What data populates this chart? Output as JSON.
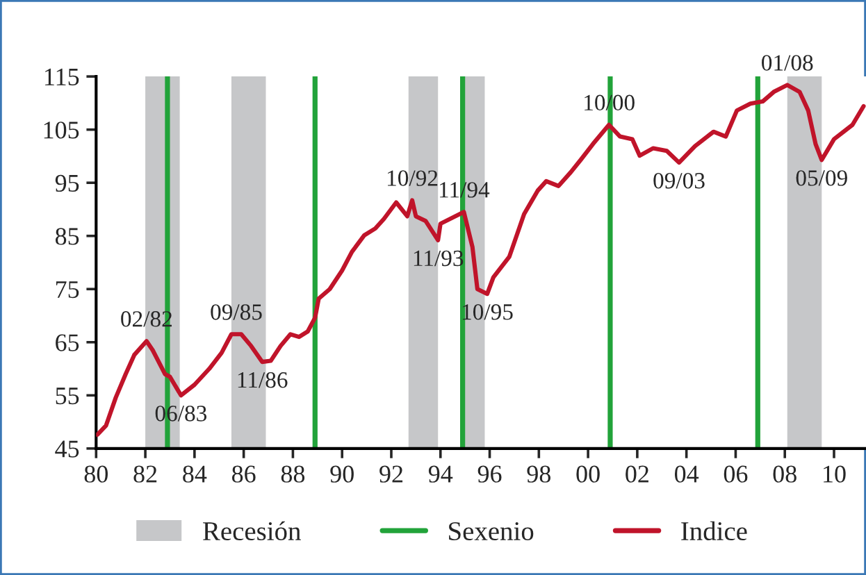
{
  "chart_data": {
    "type": "line",
    "xlim": [
      1980,
      2011.3
    ],
    "ylim": [
      45,
      115
    ],
    "xticks": [
      {
        "value": 1980,
        "label": "80"
      },
      {
        "value": 1982,
        "label": "82"
      },
      {
        "value": 1984,
        "label": "84"
      },
      {
        "value": 1986,
        "label": "86"
      },
      {
        "value": 1988,
        "label": "88"
      },
      {
        "value": 1990,
        "label": "90"
      },
      {
        "value": 1992,
        "label": "92"
      },
      {
        "value": 1994,
        "label": "94"
      },
      {
        "value": 1996,
        "label": "96"
      },
      {
        "value": 1998,
        "label": "98"
      },
      {
        "value": 2000,
        "label": "00"
      },
      {
        "value": 2002,
        "label": "02"
      },
      {
        "value": 2004,
        "label": "04"
      },
      {
        "value": 2006,
        "label": "06"
      },
      {
        "value": 2008,
        "label": "08"
      },
      {
        "value": 2010,
        "label": "10"
      }
    ],
    "yticks": [
      45,
      55,
      65,
      75,
      85,
      95,
      105,
      115
    ],
    "legend": "bottom",
    "bands": [
      {
        "axis": "x",
        "from": 1982.0,
        "to": 1983.4,
        "label": "Recesión",
        "color": "#c6c7c9"
      },
      {
        "axis": "x",
        "from": 1985.5,
        "to": 1986.9,
        "color": "#c6c7c9"
      },
      {
        "axis": "x",
        "from": 1992.7,
        "to": 1993.9,
        "color": "#c6c7c9"
      },
      {
        "axis": "x",
        "from": 1994.9,
        "to": 1995.8,
        "color": "#c6c7c9"
      },
      {
        "axis": "x",
        "from": 2008.1,
        "to": 2009.5,
        "color": "#c6c7c9"
      }
    ],
    "ref_lines": [
      {
        "axis": "x",
        "value": 1982.9,
        "label": "Sexenio",
        "color": "#22a33a"
      },
      {
        "axis": "x",
        "value": 1988.9,
        "color": "#22a33a"
      },
      {
        "axis": "x",
        "value": 1994.9,
        "color": "#22a33a"
      },
      {
        "axis": "x",
        "value": 2000.9,
        "color": "#22a33a"
      },
      {
        "axis": "x",
        "value": 2006.9,
        "color": "#22a33a"
      }
    ],
    "series": [
      {
        "name": "Indice",
        "color": "#c0142a",
        "x": [
          1980.05,
          1980.4,
          1980.8,
          1981.2,
          1981.55,
          1982.05,
          1982.3,
          1982.8,
          1983.0,
          1983.45,
          1984.0,
          1984.6,
          1985.1,
          1985.5,
          1985.9,
          1986.3,
          1986.75,
          1987.1,
          1987.5,
          1987.9,
          1988.25,
          1988.6,
          1988.9,
          1989.05,
          1989.5,
          1990.0,
          1990.4,
          1990.9,
          1991.35,
          1991.7,
          1992.2,
          1992.65,
          1992.85,
          1993.0,
          1993.4,
          1993.9,
          1994.0,
          1994.95,
          1995.3,
          1995.5,
          1995.9,
          1996.15,
          1996.8,
          1997.4,
          1997.95,
          1998.3,
          1998.8,
          1999.3,
          1999.7,
          2000.2,
          2000.85,
          2001.3,
          2001.8,
          2002.1,
          2002.65,
          2003.2,
          2003.7,
          2004.35,
          2005.1,
          2005.6,
          2006.05,
          2006.6,
          2007.1,
          2007.55,
          2008.1,
          2008.6,
          2008.95,
          2009.25,
          2009.5,
          2010.0,
          2010.75,
          2011.2
        ],
        "values": [
          47.6,
          49.3,
          54.6,
          59,
          62.6,
          65.2,
          63.5,
          59,
          58.5,
          55,
          57,
          60,
          63,
          66.5,
          66.5,
          64.3,
          61.3,
          61.5,
          64.3,
          66.5,
          66,
          67,
          69.6,
          73.2,
          75,
          78.5,
          82,
          85.1,
          86.4,
          88.2,
          91.3,
          88.7,
          91.7,
          88.7,
          87.8,
          84.2,
          87.3,
          89.5,
          82.9,
          75,
          74.1,
          77.2,
          81.1,
          89.1,
          93.5,
          95.3,
          94.4,
          97,
          99.3,
          102.3,
          105.9,
          103.7,
          103.2,
          100.1,
          101.5,
          101,
          98.8,
          101.9,
          104.6,
          103.7,
          108.6,
          109.9,
          110.3,
          112.1,
          113.4,
          112.1,
          108.6,
          102.3,
          99.3,
          103.2,
          105.9,
          109.4
        ]
      }
    ],
    "annotations": [
      {
        "text": "02/82",
        "x": 1982.05,
        "y": 65.2
      },
      {
        "text": "06/83",
        "x": 1983.45,
        "y": 55
      },
      {
        "text": "09/85",
        "x": 1985.7,
        "y": 66.5
      },
      {
        "text": "11/86",
        "x": 1986.75,
        "y": 61.3
      },
      {
        "text": "10/92",
        "x": 1992.85,
        "y": 91.7
      },
      {
        "text": "11/93",
        "x": 1993.9,
        "y": 84.2
      },
      {
        "text": "11/94",
        "x": 1994.95,
        "y": 89.5
      },
      {
        "text": "10/95",
        "x": 1995.9,
        "y": 74.1
      },
      {
        "text": "10/00",
        "x": 2000.85,
        "y": 105.9
      },
      {
        "text": "09/03",
        "x": 2003.7,
        "y": 98.8
      },
      {
        "text": "01/08",
        "x": 2008.1,
        "y": 113.4
      },
      {
        "text": "05/09",
        "x": 2009.5,
        "y": 99.3
      }
    ]
  }
}
